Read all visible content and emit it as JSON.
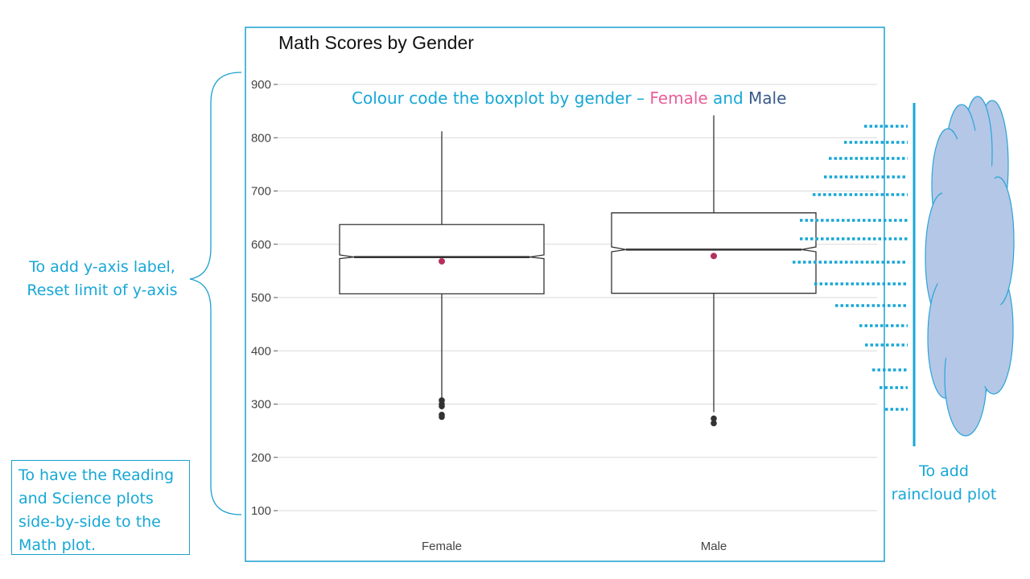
{
  "chart_data": {
    "type": "boxplot",
    "title": "Math Scores by Gender",
    "xlabel": "",
    "ylabel": "",
    "ylim": [
      100,
      900
    ],
    "y_ticks": [
      100,
      200,
      300,
      400,
      500,
      600,
      700,
      800,
      900
    ],
    "grid": true,
    "categories": [
      "Female",
      "Male"
    ],
    "boxes": [
      {
        "category": "Female",
        "whisker_low": 290,
        "q1": 507,
        "median": 576,
        "q3": 637,
        "whisker_high": 812,
        "notch_low": 573,
        "notch_high": 580,
        "mean": 568,
        "outliers": [
          307,
          300,
          296,
          280,
          276
        ]
      },
      {
        "category": "Male",
        "whisker_low": 285,
        "q1": 508,
        "median": 590,
        "q3": 659,
        "whisker_high": 842,
        "notch_low": 586,
        "notch_high": 595,
        "mean": 578,
        "outliers": [
          273,
          264
        ]
      }
    ],
    "colors": {
      "box": "#333333",
      "mean": "#b5305e",
      "outlier": "#333333",
      "grid": "#d9d9d9"
    }
  },
  "annotations": {
    "colour_note": {
      "prefix": "Colour code the boxplot by gender – ",
      "female": "Female",
      "joiner": " and ",
      "male": "Male"
    },
    "yaxis_note": [
      "To add y-axis label,",
      "Reset limit of y-axis"
    ],
    "side_note": [
      "To have the Reading",
      "and Science plots",
      "side-by-side to the",
      "Math plot."
    ],
    "raincloud_note": [
      "To add",
      "raincloud plot"
    ]
  },
  "colors": {
    "annotation": "#17a7d6",
    "frame": "#1aa0cf",
    "female": "#e8609a",
    "male": "#3a5a8c",
    "cloud_fill": "#b4c7e7",
    "cloud_stroke": "#2aa4d8"
  }
}
